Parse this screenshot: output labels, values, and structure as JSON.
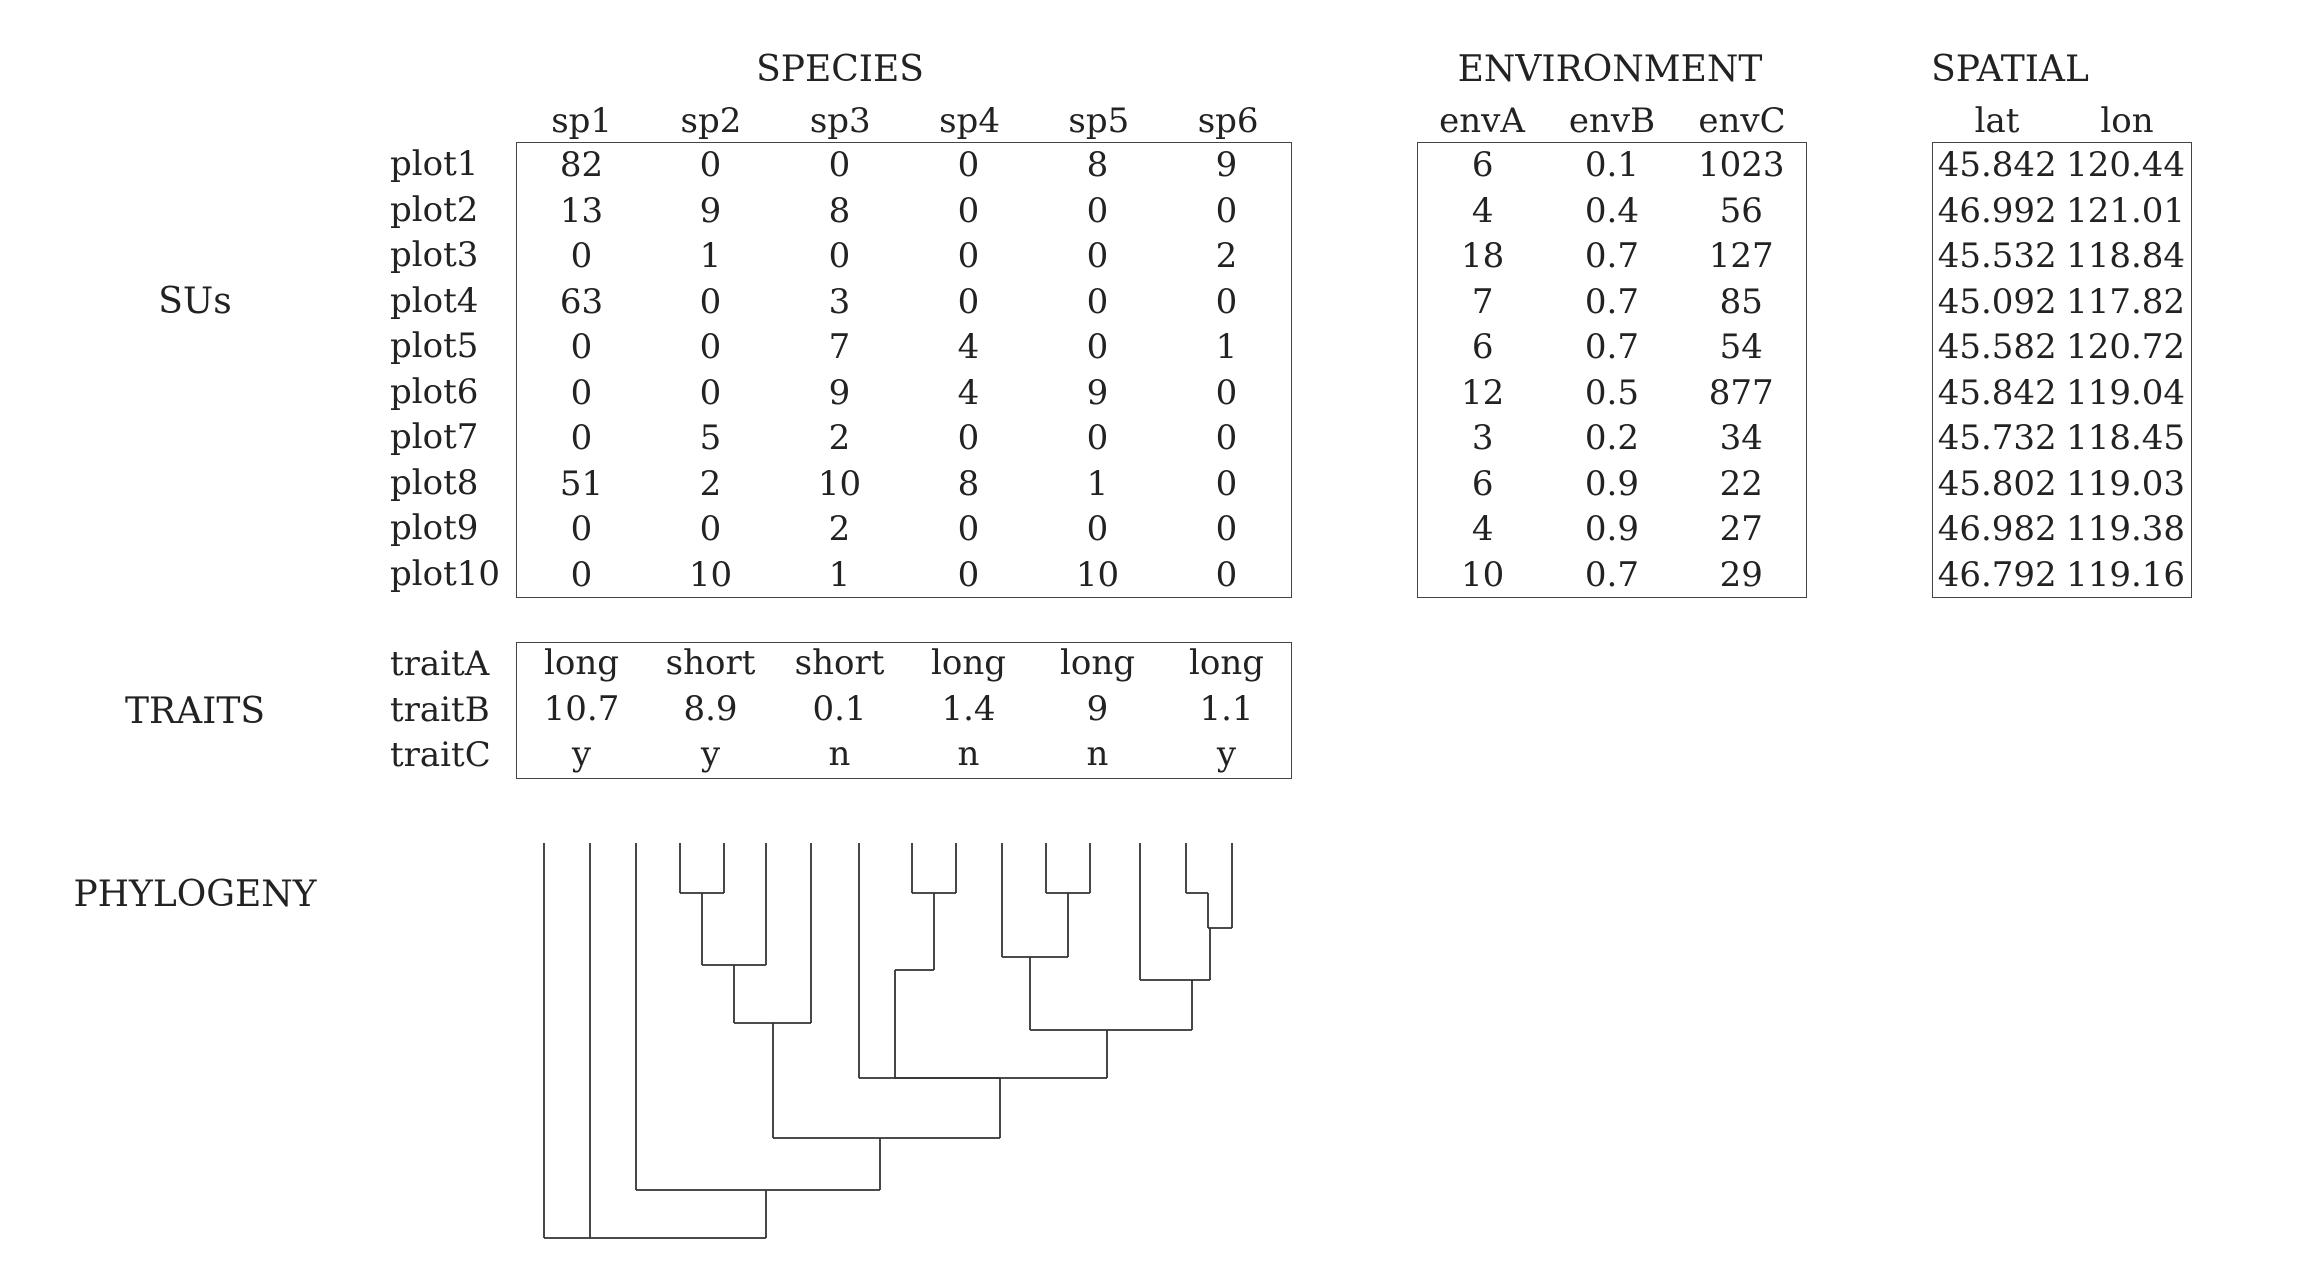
{
  "sections": {
    "species": "SPECIES",
    "environment": "ENVIRONMENT",
    "spatial": "SPATIAL"
  },
  "row_labels": {
    "sus": "SUs",
    "traits": "TRAITS",
    "phylogeny": "PHYLOGENY"
  },
  "species_columns": [
    "sp1",
    "sp2",
    "sp3",
    "sp4",
    "sp5",
    "sp6"
  ],
  "env_columns": [
    "envA",
    "envB",
    "envC"
  ],
  "spatial_columns": [
    "lat",
    "lon"
  ],
  "plots": [
    "plot1",
    "plot2",
    "plot3",
    "plot4",
    "plot5",
    "plot6",
    "plot7",
    "plot8",
    "plot9",
    "plot10"
  ],
  "species_matrix": [
    [
      "82",
      "0",
      "0",
      "0",
      "8",
      "9"
    ],
    [
      "13",
      "9",
      "8",
      "0",
      "0",
      "0"
    ],
    [
      "0",
      "1",
      "0",
      "0",
      "0",
      "2"
    ],
    [
      "63",
      "0",
      "3",
      "0",
      "0",
      "0"
    ],
    [
      "0",
      "0",
      "7",
      "4",
      "0",
      "1"
    ],
    [
      "0",
      "0",
      "9",
      "4",
      "9",
      "0"
    ],
    [
      "0",
      "5",
      "2",
      "0",
      "0",
      "0"
    ],
    [
      "51",
      "2",
      "10",
      "8",
      "1",
      "0"
    ],
    [
      "0",
      "0",
      "2",
      "0",
      "0",
      "0"
    ],
    [
      "0",
      "10",
      "1",
      "0",
      "10",
      "0"
    ]
  ],
  "env_matrix": [
    [
      "6",
      "0.1",
      "1023"
    ],
    [
      "4",
      "0.4",
      "56"
    ],
    [
      "18",
      "0.7",
      "127"
    ],
    [
      "7",
      "0.7",
      "85"
    ],
    [
      "6",
      "0.7",
      "54"
    ],
    [
      "12",
      "0.5",
      "877"
    ],
    [
      "3",
      "0.2",
      "34"
    ],
    [
      "6",
      "0.9",
      "22"
    ],
    [
      "4",
      "0.9",
      "27"
    ],
    [
      "10",
      "0.7",
      "29"
    ]
  ],
  "spatial_matrix": [
    [
      "45.842",
      "120.44"
    ],
    [
      "46.992",
      "121.01"
    ],
    [
      "45.532",
      "118.84"
    ],
    [
      "45.092",
      "117.82"
    ],
    [
      "45.582",
      "120.72"
    ],
    [
      "45.842",
      "119.04"
    ],
    [
      "45.732",
      "118.45"
    ],
    [
      "45.802",
      "119.03"
    ],
    [
      "46.982",
      "119.38"
    ],
    [
      "46.792",
      "119.16"
    ]
  ],
  "traits": [
    "traitA",
    "traitB",
    "traitC"
  ],
  "traits_matrix": [
    [
      "long",
      "short",
      "short",
      "long",
      "long",
      "long"
    ],
    [
      "10.7",
      "8.9",
      "0.1",
      "1.4",
      "9",
      "1.1"
    ],
    [
      "y",
      "y",
      "n",
      "n",
      "n",
      "y"
    ]
  ],
  "phylogeny": {
    "tip_count": 17,
    "colors": {
      "line": "#333333"
    }
  }
}
